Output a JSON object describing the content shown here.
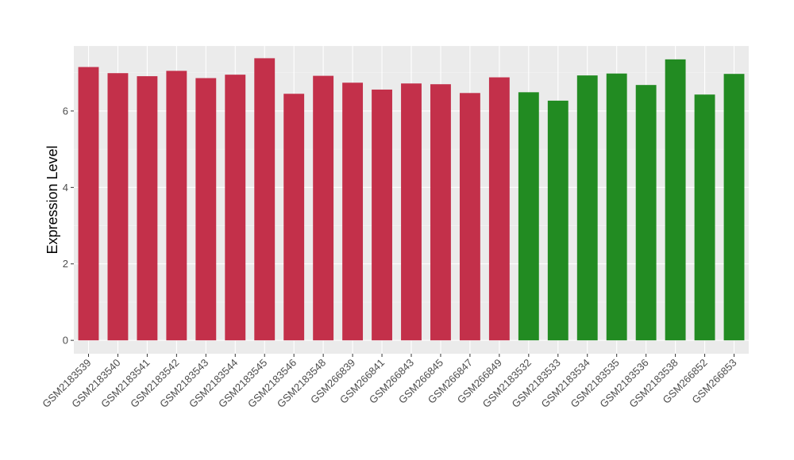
{
  "chart_data": {
    "type": "bar",
    "title": "",
    "xlabel": "",
    "ylabel": "Expression Level",
    "ylim": [
      -0.35,
      7.7
    ],
    "yticks": [
      0,
      2,
      4,
      6
    ],
    "grid": true,
    "categories": [
      "GSM2183539",
      "GSM2183540",
      "GSM2183541",
      "GSM2183542",
      "GSM2183543",
      "GSM2183544",
      "GSM2183545",
      "GSM2183546",
      "GSM2183548",
      "GSM266839",
      "GSM266841",
      "GSM266843",
      "GSM266845",
      "GSM266847",
      "GSM266849",
      "GSM2183532",
      "GSM2183533",
      "GSM2183534",
      "GSM2183535",
      "GSM2183536",
      "GSM2183538",
      "GSM266852",
      "GSM266853"
    ],
    "values": [
      7.15,
      6.99,
      6.91,
      7.05,
      6.86,
      6.95,
      7.38,
      6.45,
      6.92,
      6.74,
      6.56,
      6.72,
      6.7,
      6.47,
      6.88,
      6.49,
      6.27,
      6.93,
      6.98,
      6.68,
      7.35,
      6.43,
      6.97
    ],
    "groups": [
      "red",
      "red",
      "red",
      "red",
      "red",
      "red",
      "red",
      "red",
      "red",
      "red",
      "red",
      "red",
      "red",
      "red",
      "red",
      "green",
      "green",
      "green",
      "green",
      "green",
      "green",
      "green",
      "green"
    ],
    "colors": {
      "red": "#c3304a",
      "green": "#228b22",
      "panel": "#ebebeb",
      "grid_major": "#ffffff",
      "grid_minor": "#f5f5f5"
    }
  }
}
